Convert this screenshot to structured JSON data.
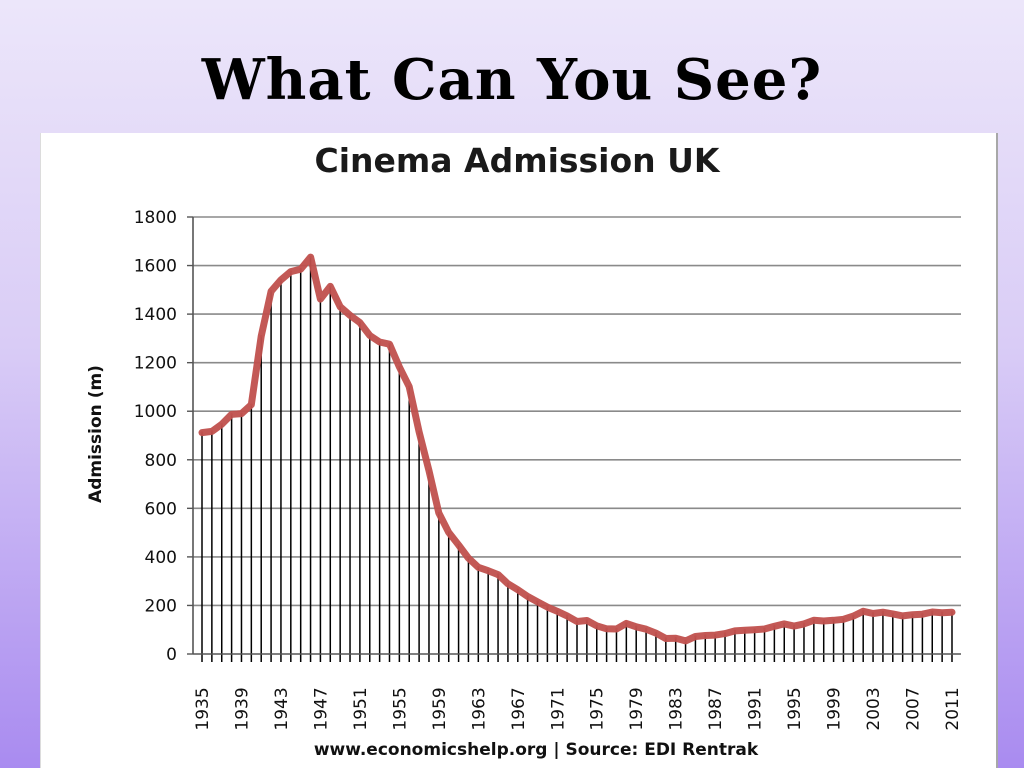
{
  "slide": {
    "title": "What Can You See?"
  },
  "chart_data": {
    "type": "line",
    "title": "Cinema Admission UK",
    "ylabel": "Admission (m)",
    "xlabel": "",
    "footer": "www.economicshelp.org | Source: EDI Rentrak",
    "ylim": [
      0,
      1800
    ],
    "yticks": [
      0,
      200,
      400,
      600,
      800,
      1000,
      1200,
      1400,
      1600,
      1800
    ],
    "xlim": [
      1935,
      2011
    ],
    "xticks": [
      1935,
      1939,
      1943,
      1947,
      1951,
      1955,
      1959,
      1963,
      1967,
      1971,
      1975,
      1979,
      1983,
      1987,
      1991,
      1995,
      1999,
      2003,
      2007,
      2011
    ],
    "grid": true,
    "line_color": "#c0504d",
    "drop_lines": true,
    "x": [
      1935,
      1936,
      1937,
      1938,
      1939,
      1940,
      1941,
      1942,
      1943,
      1944,
      1945,
      1946,
      1947,
      1948,
      1949,
      1950,
      1951,
      1952,
      1953,
      1954,
      1955,
      1956,
      1957,
      1958,
      1959,
      1960,
      1961,
      1962,
      1963,
      1964,
      1965,
      1966,
      1967,
      1968,
      1969,
      1970,
      1971,
      1972,
      1973,
      1974,
      1975,
      1976,
      1977,
      1978,
      1979,
      1980,
      1981,
      1982,
      1983,
      1984,
      1985,
      1986,
      1987,
      1988,
      1989,
      1990,
      1991,
      1992,
      1993,
      1994,
      1995,
      1996,
      1997,
      1998,
      1999,
      2000,
      2001,
      2002,
      2003,
      2004,
      2005,
      2006,
      2007,
      2008,
      2009,
      2010,
      2011
    ],
    "values": [
      912,
      917,
      946,
      987,
      990,
      1027,
      1309,
      1494,
      1541,
      1575,
      1585,
      1635,
      1462,
      1514,
      1430,
      1395,
      1365,
      1312,
      1285,
      1276,
      1182,
      1101,
      915,
      755,
      581,
      501,
      449,
      395,
      357,
      343,
      327,
      289,
      265,
      237,
      215,
      193,
      176,
      157,
      134,
      138,
      116,
      104,
      103,
      126,
      112,
      102,
      86,
      64,
      65,
      54,
      72,
      76,
      78,
      84,
      95,
      98,
      100,
      103,
      114,
      124,
      115,
      124,
      139,
      136,
      139,
      143,
      156,
      176,
      167,
      172,
      165,
      157,
      162,
      164,
      173,
      170,
      172
    ]
  }
}
